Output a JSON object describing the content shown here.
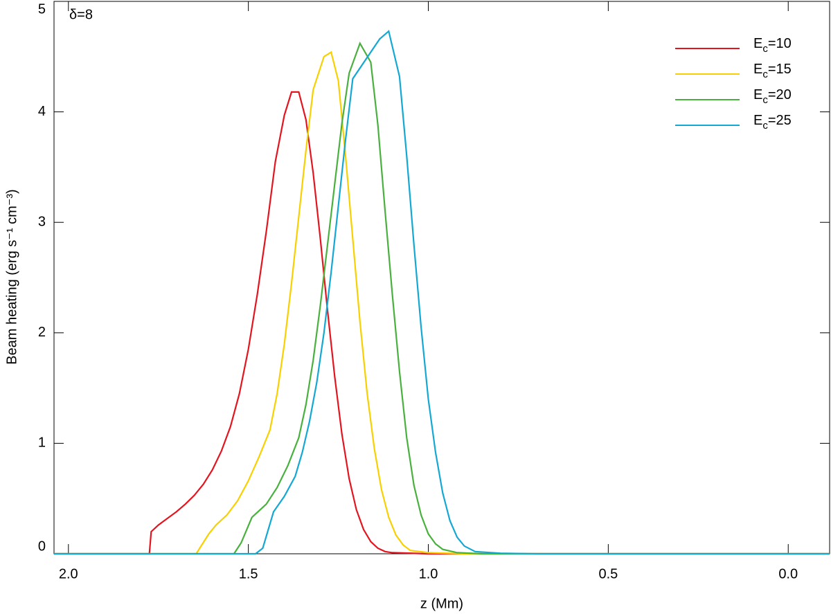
{
  "chart_data": {
    "type": "line",
    "annotation": "δ=8",
    "xlabel": "z (Mm)",
    "ylabel": "Beam heating (erg s⁻¹ cm⁻³)",
    "xlim": [
      2.04,
      -0.115
    ],
    "ylim": [
      0,
      5
    ],
    "xticks": [
      {
        "value": 2,
        "label": "2.0"
      },
      1.5,
      {
        "value": 1,
        "label": "1.0"
      },
      0.5,
      {
        "value": 0,
        "label": "0.0"
      }
    ],
    "yticks": [
      0,
      1,
      2,
      3,
      4,
      5
    ],
    "legend": "top-right",
    "series": [
      {
        "name": "Ec=10",
        "color": "#e3141e",
        "x": [
          2.04,
          1.775,
          1.77,
          1.75,
          1.725,
          1.7,
          1.675,
          1.65,
          1.625,
          1.6,
          1.575,
          1.55,
          1.525,
          1.5,
          1.475,
          1.45,
          1.425,
          1.4,
          1.38,
          1.36,
          1.34,
          1.32,
          1.3,
          1.28,
          1.26,
          1.24,
          1.22,
          1.2,
          1.18,
          1.16,
          1.14,
          1.12,
          1.1,
          1.0,
          -0.115
        ],
        "values": [
          0,
          0,
          0.2,
          0.26,
          0.32,
          0.38,
          0.45,
          0.53,
          0.63,
          0.76,
          0.93,
          1.15,
          1.45,
          1.85,
          2.35,
          2.92,
          3.55,
          3.97,
          4.18,
          4.18,
          3.93,
          3.45,
          2.85,
          2.2,
          1.6,
          1.08,
          0.68,
          0.4,
          0.22,
          0.11,
          0.05,
          0.02,
          0.01,
          0,
          0
        ]
      },
      {
        "name": "Ec=15",
        "color": "#f8d000",
        "x": [
          2.04,
          1.645,
          1.61,
          1.59,
          1.56,
          1.53,
          1.5,
          1.47,
          1.44,
          1.42,
          1.4,
          1.38,
          1.36,
          1.34,
          1.32,
          1.29,
          1.27,
          1.25,
          1.23,
          1.21,
          1.19,
          1.17,
          1.15,
          1.13,
          1.11,
          1.09,
          1.07,
          1.05,
          1.0,
          0.9,
          -0.115
        ],
        "values": [
          0,
          0,
          0.18,
          0.26,
          0.35,
          0.48,
          0.66,
          0.88,
          1.12,
          1.45,
          1.9,
          2.45,
          3.05,
          3.65,
          4.2,
          4.5,
          4.54,
          4.28,
          3.6,
          2.85,
          2.1,
          1.45,
          0.95,
          0.58,
          0.33,
          0.17,
          0.08,
          0.03,
          0.01,
          0,
          0
        ]
      },
      {
        "name": "Ec=20",
        "color": "#48b03c",
        "x": [
          2.04,
          1.54,
          1.52,
          1.49,
          1.45,
          1.42,
          1.39,
          1.36,
          1.34,
          1.32,
          1.3,
          1.28,
          1.26,
          1.24,
          1.22,
          1.19,
          1.16,
          1.14,
          1.12,
          1.1,
          1.08,
          1.06,
          1.04,
          1.02,
          1.0,
          0.98,
          0.96,
          0.92,
          0.85,
          -0.115
        ],
        "values": [
          0,
          0,
          0.1,
          0.33,
          0.45,
          0.6,
          0.8,
          1.05,
          1.35,
          1.75,
          2.25,
          2.8,
          3.35,
          3.9,
          4.35,
          4.62,
          4.45,
          3.88,
          3.1,
          2.35,
          1.65,
          1.05,
          0.62,
          0.35,
          0.18,
          0.09,
          0.04,
          0.01,
          0,
          0
        ]
      },
      {
        "name": "Ec=25",
        "color": "#13a8d4",
        "x": [
          2.04,
          1.48,
          1.46,
          1.43,
          1.4,
          1.37,
          1.35,
          1.33,
          1.31,
          1.29,
          1.27,
          1.25,
          1.23,
          1.21,
          1.135,
          1.11,
          1.08,
          1.06,
          1.04,
          1.02,
          1.0,
          0.98,
          0.96,
          0.94,
          0.92,
          0.9,
          0.87,
          0.8,
          0.7,
          -0.115
        ],
        "values": [
          0,
          0,
          0.05,
          0.38,
          0.52,
          0.7,
          0.92,
          1.2,
          1.55,
          2.0,
          2.55,
          3.15,
          3.75,
          4.3,
          4.66,
          4.73,
          4.32,
          3.6,
          2.8,
          2.05,
          1.4,
          0.92,
          0.55,
          0.3,
          0.15,
          0.07,
          0.02,
          0.005,
          0,
          0
        ]
      }
    ]
  }
}
